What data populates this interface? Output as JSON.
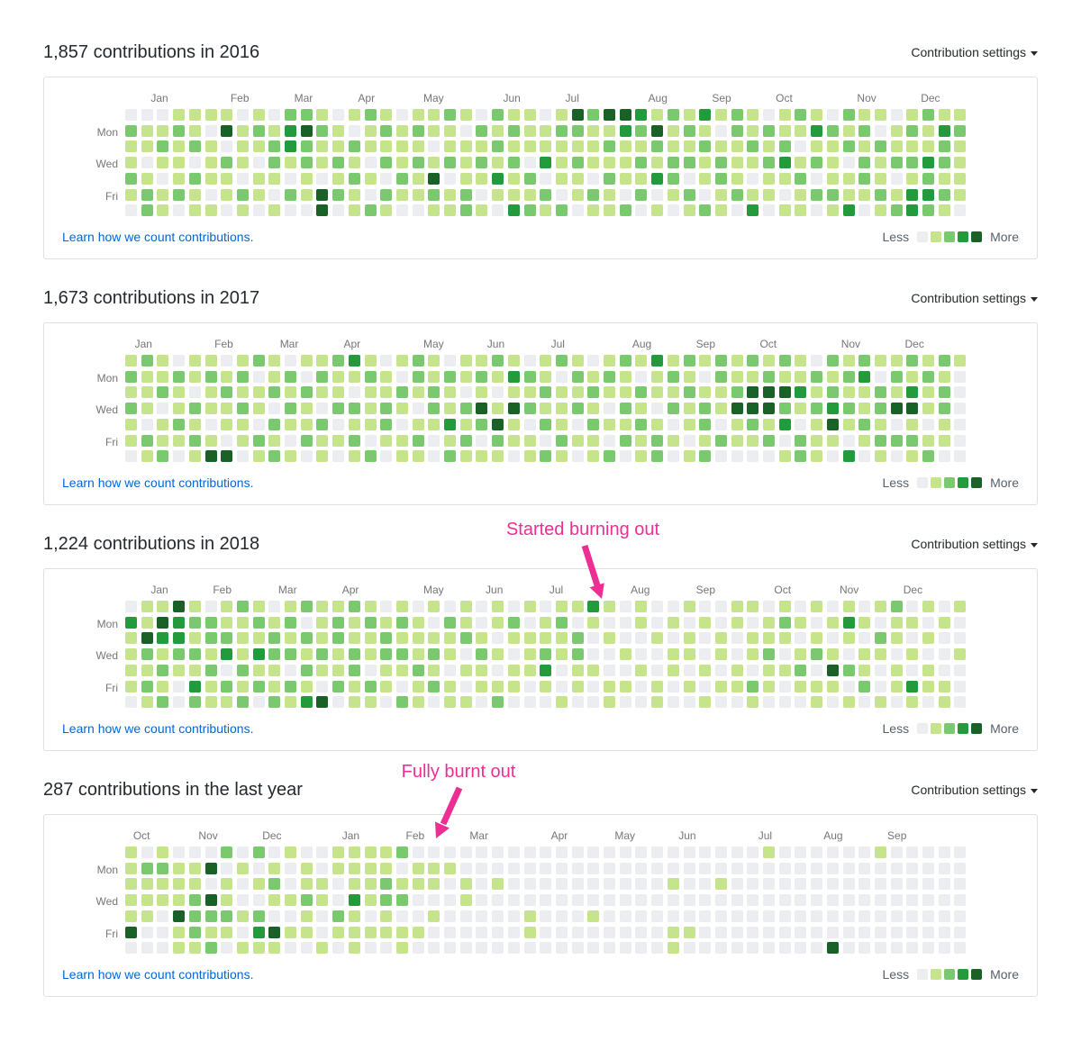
{
  "ui": {
    "contribution_settings_label": "Contribution settings",
    "learn_link": "Learn how we count contributions.",
    "legend": {
      "less": "Less",
      "more": "More"
    }
  },
  "colors": {
    "levels": [
      "#ebedf0",
      "#c6e48b",
      "#7bc96f",
      "#239a3b",
      "#196127"
    ],
    "annotation": "#ed2e92",
    "link": "#0366d6",
    "label_gray": "#767676"
  },
  "day_labels": [
    {
      "label": "Mon",
      "row": 1
    },
    {
      "label": "Wed",
      "row": 3
    },
    {
      "label": "Fri",
      "row": 5
    }
  ],
  "annotations": [
    {
      "text": "Started burning out",
      "chart_index": 2,
      "points_to": "dark cell in top row, late July 2018",
      "color": "#ed2e92"
    },
    {
      "text": "Fully burnt out",
      "chart_index": 3,
      "points_to": "empty cells starting late February",
      "color": "#ed2e92"
    }
  ],
  "chart_data": [
    {
      "type": "heatmap",
      "title": "1,857 contributions in 2016",
      "total_contributions": 1857,
      "period": "2016",
      "rows": [
        "Sun",
        "Mon",
        "Tue",
        "Wed",
        "Thu",
        "Fri",
        "Sat"
      ],
      "row_labels_shown": [
        "Mon",
        "Wed",
        "Fri"
      ],
      "legend_position": "bottom-right",
      "levels_scale": [
        "#ebedf0",
        "#c6e48b",
        "#7bc96f",
        "#239a3b",
        "#196127"
      ],
      "months": [
        {
          "label": "Jan",
          "week": 1.6
        },
        {
          "label": "Feb",
          "week": 6.6
        },
        {
          "label": "Mar",
          "week": 10.6
        },
        {
          "label": "Apr",
          "week": 14.6
        },
        {
          "label": "May",
          "week": 18.7
        },
        {
          "label": "Jun",
          "week": 23.7
        },
        {
          "label": "Jul",
          "week": 27.6
        },
        {
          "label": "Aug",
          "week": 32.8
        },
        {
          "label": "Sep",
          "week": 36.8
        },
        {
          "label": "Oct",
          "week": 40.8
        },
        {
          "label": "Nov",
          "week": 45.9
        },
        {
          "label": "Dec",
          "week": 49.9
        }
      ],
      "weeks": [
        "0211210",
        "0110122",
        "0121011",
        "1211120",
        "1120211",
        "1011101",
        "1402110",
        "0111021",
        "1210110",
        "0122101",
        "2331020",
        "2422110",
        "1211044",
        "0112120",
        "1021211",
        "2110102",
        "1212021",
        "0111210",
        "1212110",
        "1101421",
        "2112011",
        "1011122",
        "0212101",
        "2121310",
        "1212113",
        "1110212",
        "0113021",
        "1211102",
        "4212110",
        "2111021",
        "4121211",
        "4311102",
        "3212120",
        "1421301",
        "2112210",
        "1212021",
        "3121102",
        "1012211",
        "2211120",
        "1121013",
        "0212110",
        "1123101",
        "2101211",
        "1312020",
        "0211121",
        "2120113",
        "1212210",
        "1021121",
        "0112012",
        "1212133",
        "2113232",
        "1322121",
        "1211110"
      ]
    },
    {
      "type": "heatmap",
      "title": "1,673 contributions in 2017",
      "total_contributions": 1673,
      "period": "2017",
      "rows": [
        "Sun",
        "Mon",
        "Tue",
        "Wed",
        "Thu",
        "Fri",
        "Sat"
      ],
      "row_labels_shown": [
        "Mon",
        "Wed",
        "Fri"
      ],
      "legend_position": "bottom-right",
      "levels_scale": [
        "#ebedf0",
        "#c6e48b",
        "#7bc96f",
        "#239a3b",
        "#196127"
      ],
      "months": [
        {
          "label": "Jan",
          "week": 0.6
        },
        {
          "label": "Feb",
          "week": 5.6
        },
        {
          "label": "Mar",
          "week": 9.7
        },
        {
          "label": "Apr",
          "week": 13.7
        },
        {
          "label": "May",
          "week": 18.7
        },
        {
          "label": "Jun",
          "week": 22.7
        },
        {
          "label": "Jul",
          "week": 26.7
        },
        {
          "label": "Aug",
          "week": 31.8
        },
        {
          "label": "Sep",
          "week": 35.8
        },
        {
          "label": "Oct",
          "week": 39.8
        },
        {
          "label": "Nov",
          "week": 44.9
        },
        {
          "label": "Dec",
          "week": 48.9
        }
      ],
      "weeks": [
        "1212110",
        "2111021",
        "1120112",
        "0211210",
        "1102121",
        "1211014",
        "0121104",
        "1212110",
        "2011021",
        "1120212",
        "0212101",
        "1021120",
        "1210211",
        "2112010",
        "3102121",
        "1211102",
        "0112210",
        "1021011",
        "2210121",
        "1122100",
        "0211312",
        "1102121",
        "1214201",
        "2101421",
        "1314110",
        "0212011",
        "1121202",
        "2011121",
        "1212010",
        "0121211",
        "1210102",
        "2112120",
        "1021211",
        "3110122",
        "1212010",
        "2121101",
        "1012212",
        "2211020",
        "1124110",
        "2144210",
        "1244120",
        "2142301",
        "1131022",
        "0212111",
        "2123410",
        "1212103",
        "2311210",
        "1022121",
        "1214020",
        "2134121",
        "1211012",
        "2122110",
        "1000000"
      ]
    },
    {
      "type": "heatmap",
      "title": "1,224 contributions in 2018",
      "total_contributions": 1224,
      "period": "2018",
      "rows": [
        "Sun",
        "Mon",
        "Tue",
        "Wed",
        "Thu",
        "Fri",
        "Sat"
      ],
      "row_labels_shown": [
        "Mon",
        "Wed",
        "Fri"
      ],
      "legend_position": "bottom-right",
      "levels_scale": [
        "#ebedf0",
        "#c6e48b",
        "#7bc96f",
        "#239a3b",
        "#196127"
      ],
      "months": [
        {
          "label": "Jan",
          "week": 1.6
        },
        {
          "label": "Feb",
          "week": 5.5
        },
        {
          "label": "Mar",
          "week": 9.6
        },
        {
          "label": "Apr",
          "week": 13.6
        },
        {
          "label": "May",
          "week": 18.7
        },
        {
          "label": "Jun",
          "week": 22.6
        },
        {
          "label": "Jul",
          "week": 26.6
        },
        {
          "label": "Aug",
          "week": 31.7
        },
        {
          "label": "Sep",
          "week": 35.8
        },
        {
          "label": "Oct",
          "week": 40.7
        },
        {
          "label": "Nov",
          "week": 44.8
        },
        {
          "label": "Dec",
          "week": 48.8
        }
      ],
      "weeks": [
        "0311110",
        "1142121",
        "1431212",
        "4332100",
        "1212132",
        "0221211",
        "1123021",
        "2111212",
        "1213120",
        "0122112",
        "1212021",
        "2021213",
        "1112104",
        "1221120",
        "2112211",
        "1211021",
        "0122110",
        "1212102",
        "0111211",
        "1012120",
        "0211011",
        "1120101",
        "0012110",
        "1101012",
        "0210110",
        "1011100",
        "0112310",
        "1211001",
        "1022110",
        "3100100",
        "1010011",
        "0001010",
        "1100100",
        "0010011",
        "0101100",
        "1011010",
        "0100101",
        "0011010",
        "1100110",
        "1011021",
        "0112110",
        "1210100",
        "0101210",
        "1012011",
        "0101410",
        "1310201",
        "0101120",
        "1021001",
        "2110110",
        "0101031",
        "1010110",
        "0100011",
        "1001000"
      ]
    },
    {
      "type": "heatmap",
      "title": "287 contributions in the last year",
      "total_contributions": 287,
      "period": "last year (Oct–Sep)",
      "rows": [
        "Sun",
        "Mon",
        "Tue",
        "Wed",
        "Thu",
        "Fri",
        "Sat"
      ],
      "row_labels_shown": [
        "Mon",
        "Wed",
        "Fri"
      ],
      "legend_position": "bottom-right",
      "levels_scale": [
        "#ebedf0",
        "#c6e48b",
        "#7bc96f",
        "#239a3b",
        "#196127"
      ],
      "months": [
        {
          "label": "Oct",
          "week": 0.5
        },
        {
          "label": "Nov",
          "week": 4.6
        },
        {
          "label": "Dec",
          "week": 8.6
        },
        {
          "label": "Jan",
          "week": 13.6
        },
        {
          "label": "Feb",
          "week": 17.6
        },
        {
          "label": "Mar",
          "week": 21.6
        },
        {
          "label": "Apr",
          "week": 26.7
        },
        {
          "label": "May",
          "week": 30.7
        },
        {
          "label": "Jun",
          "week": 34.7
        },
        {
          "label": "Jul",
          "week": 39.7
        },
        {
          "label": "Aug",
          "week": 43.8
        },
        {
          "label": "Sep",
          "week": 47.8
        }
      ],
      "weeks": [
        "1111140",
        "0211100",
        "1211000",
        "0111411",
        "0112221",
        "0404212",
        "2011210",
        "0100101",
        "2010231",
        "0121041",
        "1001010",
        "0112110",
        "0011001",
        "1100210",
        "1113111",
        "1111010",
        "1122110",
        "2012011",
        "0110010",
        "0110100",
        "0100000",
        "0011000",
        "0000000",
        "0010000",
        "0000000",
        "0000110",
        "0000000",
        "0000000",
        "0000000",
        "0000100",
        "0000000",
        "0000000",
        "0000000",
        "0000000",
        "0010011",
        "0000010",
        "0000000",
        "0010000",
        "0000000",
        "0000000",
        "1000000",
        "0000000",
        "0000000",
        "0000000",
        "0000004",
        "0000000",
        "0000000",
        "1000000",
        "0000000",
        "0000000",
        "0000000",
        "0000000",
        "0000000"
      ]
    }
  ]
}
